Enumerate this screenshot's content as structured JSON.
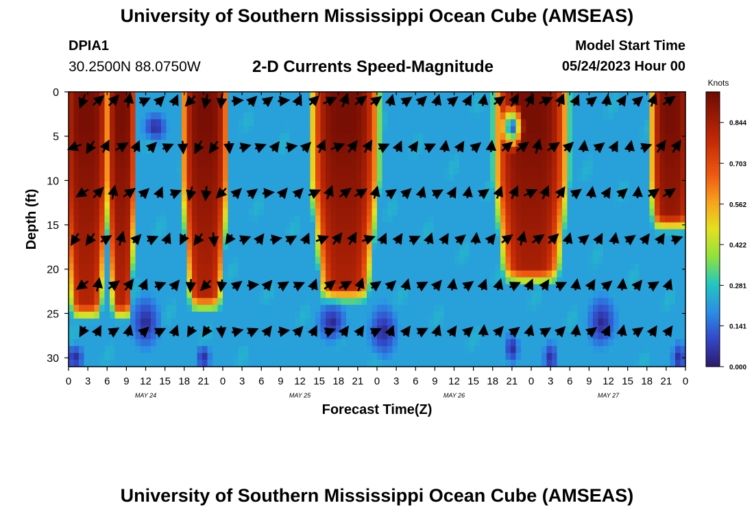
{
  "header": {
    "title": "University of Southern Mississippi Ocean Cube (AMSEAS)",
    "station": "DPIA1",
    "coordinates": "30.2500N  88.0750W",
    "subtitle": "2-D Currents Speed-Magnitude",
    "model_start_label": "Model Start Time",
    "model_start_value": "05/24/2023 Hour 00"
  },
  "footer": {
    "title": "University of Southern Mississippi Ocean Cube (AMSEAS)"
  },
  "chart_data": {
    "type": "heatmap",
    "title": "2-D Currents Speed-Magnitude",
    "xlabel": "Forecast Time(Z)",
    "ylabel": "Depth (ft)",
    "x_ticks": [
      "0",
      "3",
      "6",
      "9",
      "12",
      "15",
      "18",
      "21",
      "0",
      "3",
      "6",
      "9",
      "12",
      "15",
      "18",
      "21",
      "0",
      "3",
      "6",
      "9",
      "12",
      "15",
      "18",
      "21",
      "0",
      "3",
      "6",
      "9",
      "12",
      "15",
      "18",
      "21",
      "0"
    ],
    "date_labels": [
      {
        "label": "MAY 24",
        "hour": 12
      },
      {
        "label": "MAY 25",
        "hour": 36
      },
      {
        "label": "MAY 26",
        "hour": 60
      },
      {
        "label": "MAY 27",
        "hour": 84
      }
    ],
    "x_range_hours": [
      0,
      96
    ],
    "y_ticks": [
      0,
      5,
      10,
      15,
      20,
      25,
      30
    ],
    "ylim": [
      31,
      0
    ],
    "colorbar": {
      "unit": "Knots",
      "ticks": [
        "0.844",
        "0.703",
        "0.562",
        "0.422",
        "0.281",
        "0.141",
        "0.000"
      ],
      "range": [
        0.0,
        0.95
      ]
    },
    "speed_fields": {
      "strong_flow_intervals_hours": [
        [
          0,
          5.5
        ],
        [
          7,
          9.5
        ],
        [
          18.5,
          24
        ],
        [
          38.5,
          47.5
        ],
        [
          67,
          77
        ],
        [
          91.5,
          96
        ]
      ],
      "note": "approximate speed (knots) vs. time and depth"
    },
    "vector_directions_deg": {
      "note": "current direction (compass degrees) of the arrow field at selected times",
      "samples": [
        {
          "hour": 1,
          "direction": 225
        },
        {
          "hour": 7,
          "direction": 35
        },
        {
          "hour": 13,
          "direction": 45
        },
        {
          "hour": 22,
          "direction": 200
        },
        {
          "hour": 28,
          "direction": 60
        },
        {
          "hour": 42,
          "direction": 45
        },
        {
          "hour": 52,
          "direction": 40
        },
        {
          "hour": 64,
          "direction": 30
        },
        {
          "hour": 72,
          "direction": 40
        },
        {
          "hour": 84,
          "direction": 30
        },
        {
          "hour": 94,
          "direction": 45
        }
      ]
    }
  }
}
